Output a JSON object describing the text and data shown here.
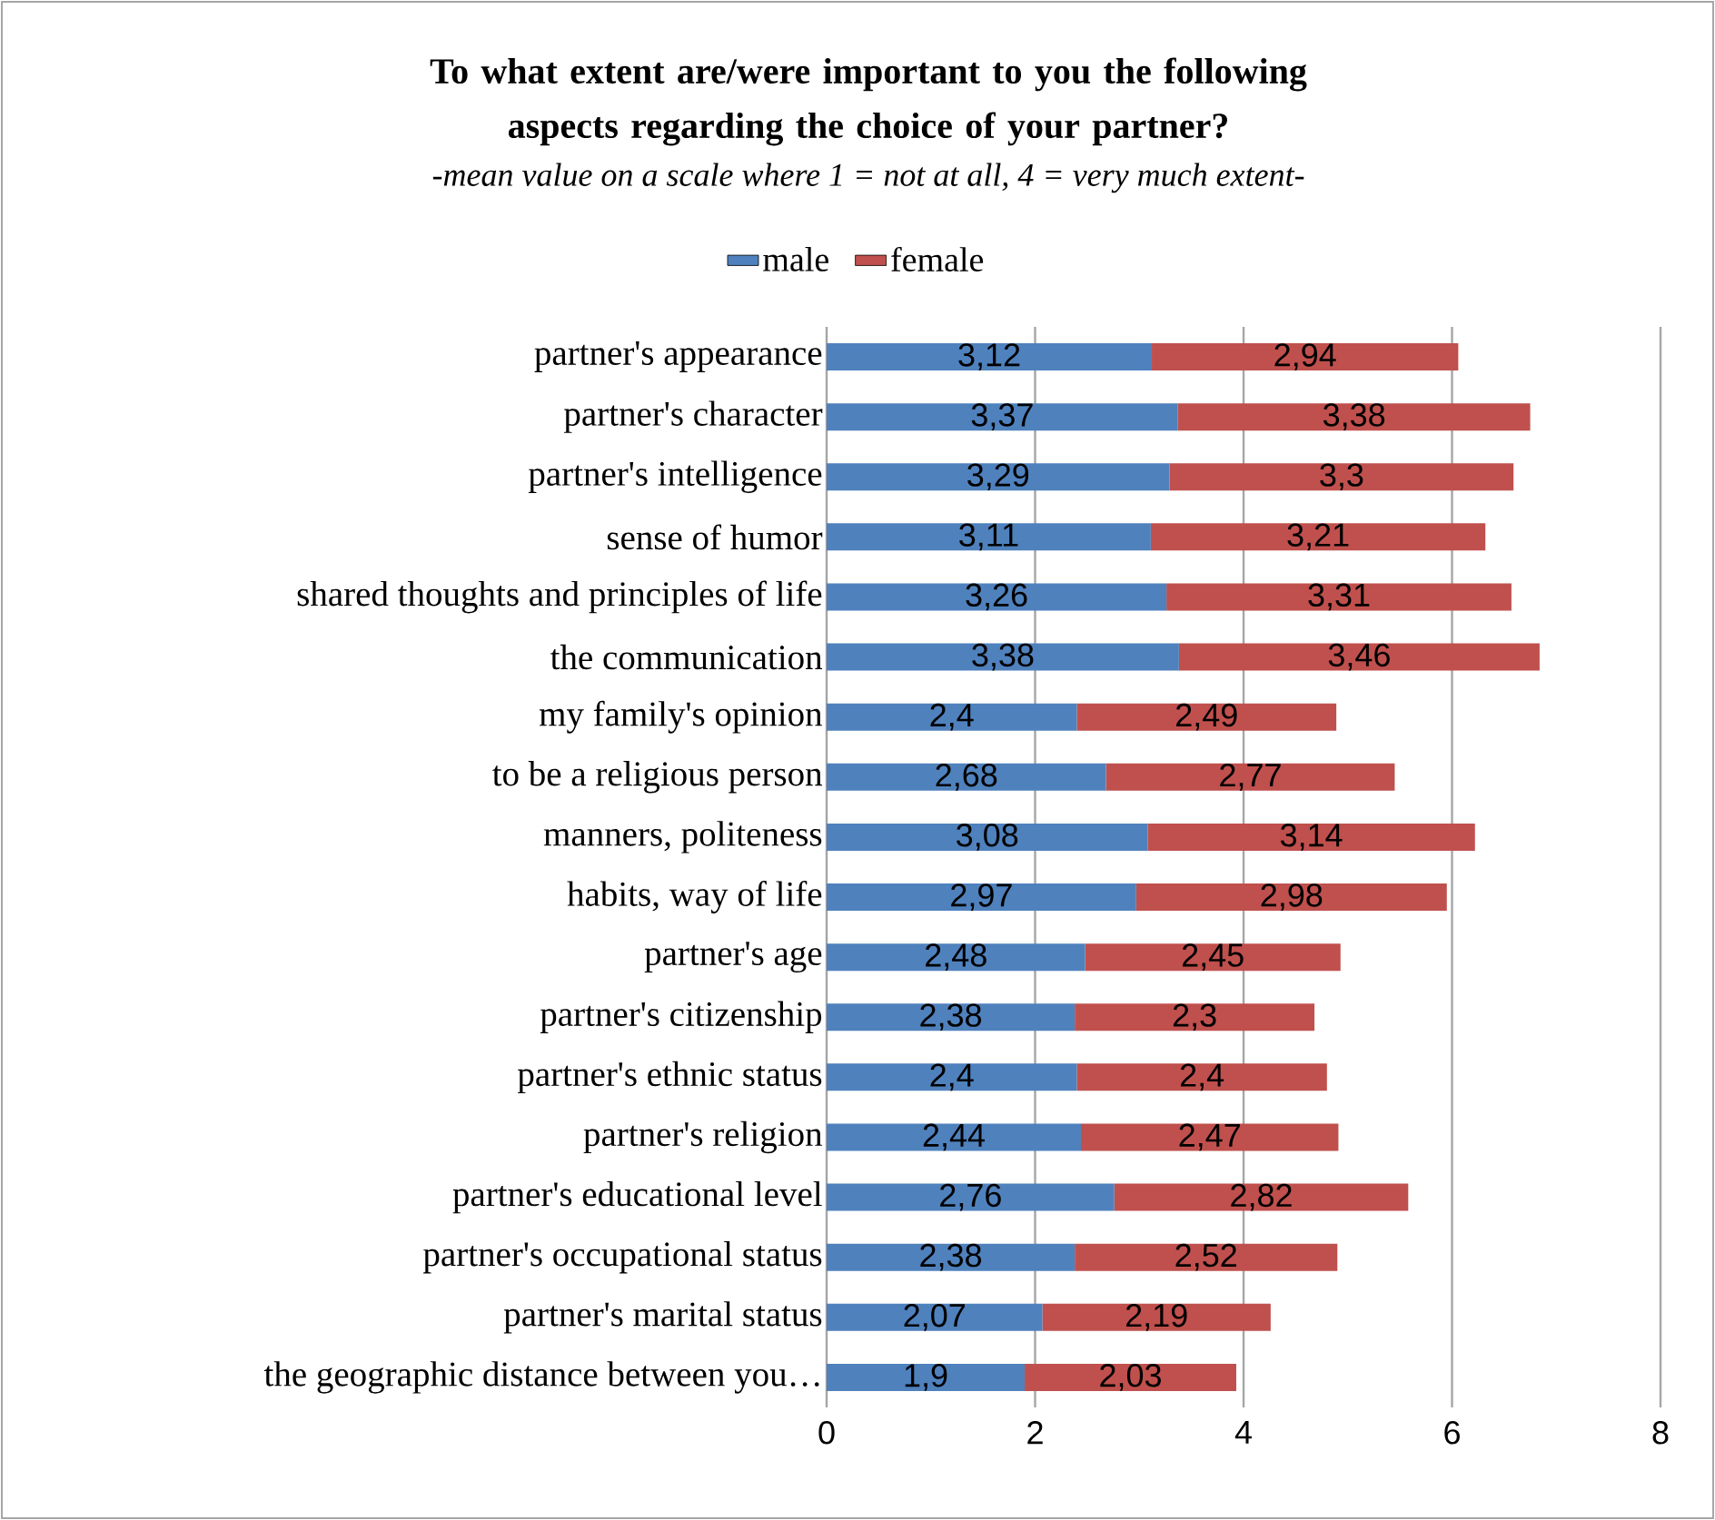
{
  "chart_data": {
    "type": "bar",
    "orientation": "horizontal",
    "stacked": true,
    "title": "To what extent are/were important to you the following aspects regarding the choice of your partner?",
    "subtitle": "-mean value on a scale where 1 = not at all, 4 = very much extent-",
    "categories": [
      "partner's appearance",
      "partner's character",
      "partner's intelligence",
      "sense of humor",
      "shared thoughts and principles of life",
      "the communication",
      "my family's opinion",
      "to be a religious person",
      "manners, politeness",
      "habits, way of life",
      "partner's age",
      "partner's citizenship",
      "partner's ethnic status",
      "partner's religion",
      "partner's educational level",
      "partner's occupational status",
      "partner's marital status",
      "the geographic distance between you…"
    ],
    "series": [
      {
        "name": "male",
        "color": "#4f81bd",
        "values": [
          3.12,
          3.37,
          3.29,
          3.11,
          3.26,
          3.38,
          2.4,
          2.68,
          3.08,
          2.97,
          2.48,
          2.38,
          2.4,
          2.44,
          2.76,
          2.38,
          2.07,
          1.9
        ],
        "value_labels": [
          "3,12",
          "3,37",
          "3,29",
          "3,11",
          "3,26",
          "3,38",
          "2,4",
          "2,68",
          "3,08",
          "2,97",
          "2,48",
          "2,38",
          "2,4",
          "2,44",
          "2,76",
          "2,38",
          "2,07",
          "1,9"
        ]
      },
      {
        "name": "female",
        "color": "#c0504d",
        "values": [
          2.94,
          3.38,
          3.3,
          3.21,
          3.31,
          3.46,
          2.49,
          2.77,
          3.14,
          2.98,
          2.45,
          2.3,
          2.4,
          2.47,
          2.82,
          2.52,
          2.19,
          2.03
        ],
        "value_labels": [
          "2,94",
          "3,38",
          "3,3",
          "3,21",
          "3,31",
          "3,46",
          "2,49",
          "2,77",
          "3,14",
          "2,98",
          "2,45",
          "2,3",
          "2,4",
          "2,47",
          "2,82",
          "2,52",
          "2,19",
          "2,03"
        ]
      }
    ],
    "xlim": [
      0,
      8
    ],
    "xticks": [
      0,
      2,
      4,
      6,
      8
    ],
    "grid": "x",
    "legend": "top"
  }
}
